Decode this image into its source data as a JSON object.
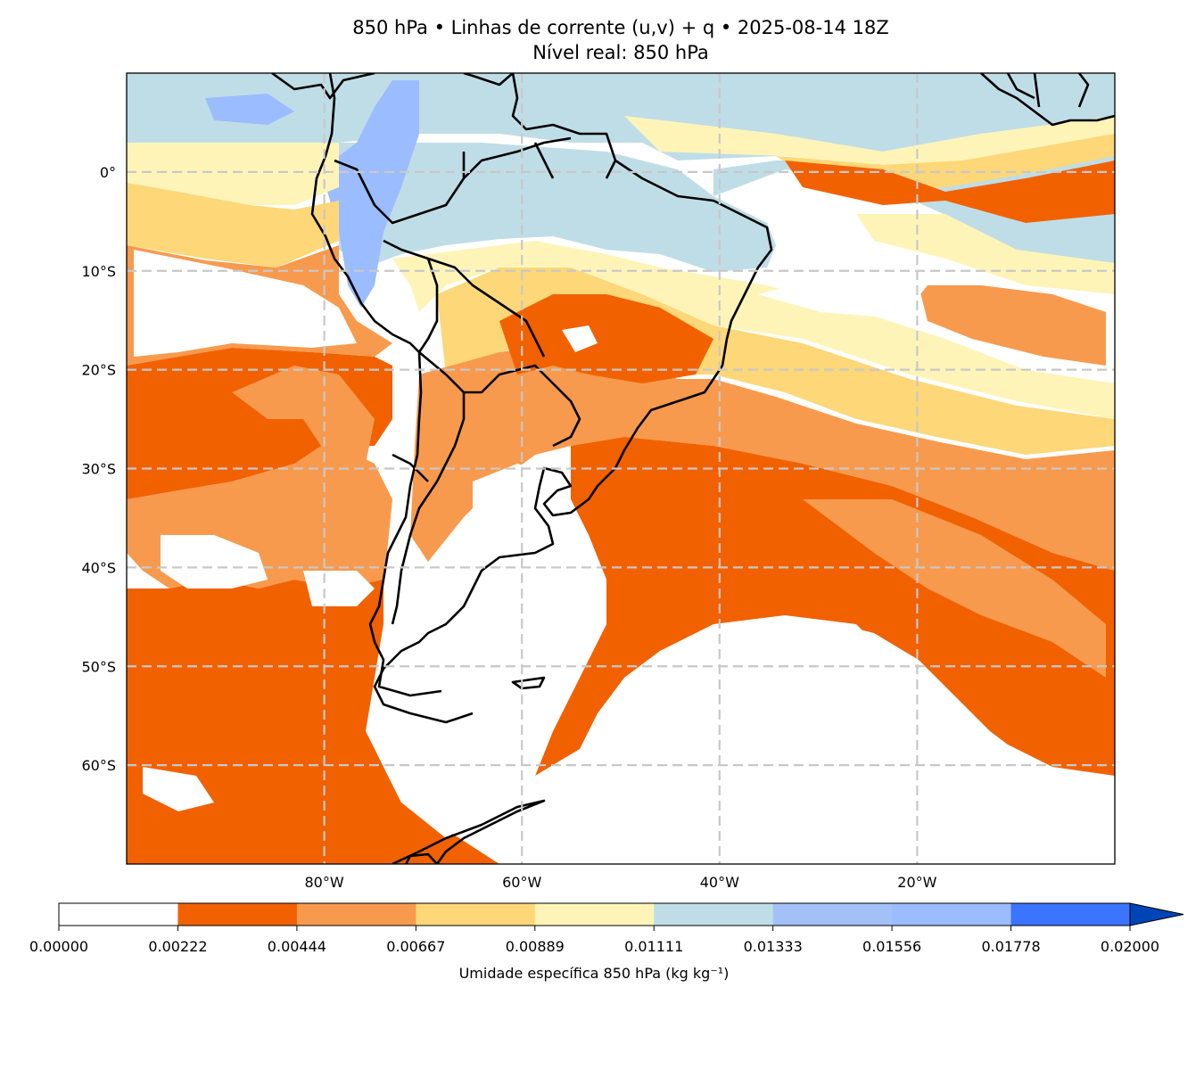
{
  "title": {
    "line1": "850 hPa • Linhas de corrente (u,v) + q • 2025-08-14 18Z",
    "line2": "Nível real: 850 hPa"
  },
  "map": {
    "lon_range": [
      -100,
      0
    ],
    "lat_range": [
      -70,
      10
    ],
    "lat_ticks": [
      {
        "value": 0,
        "label": "0°"
      },
      {
        "value": -10,
        "label": "10°S"
      },
      {
        "value": -20,
        "label": "20°S"
      },
      {
        "value": -30,
        "label": "30°S"
      },
      {
        "value": -40,
        "label": "40°S"
      },
      {
        "value": -50,
        "label": "50°S"
      },
      {
        "value": -60,
        "label": "60°S"
      }
    ],
    "lon_ticks": [
      {
        "value": -80,
        "label": "80°W"
      },
      {
        "value": -60,
        "label": "60°W"
      },
      {
        "value": -40,
        "label": "40°W"
      },
      {
        "value": -20,
        "label": "20°W"
      }
    ],
    "gridlines": "dashed"
  },
  "colorbar": {
    "label": "Umidade específica 850 hPa (kg kg⁻¹)",
    "extend": "max",
    "ticks": [
      "0.00000",
      "0.00222",
      "0.00444",
      "0.00667",
      "0.00889",
      "0.01111",
      "0.01333",
      "0.01556",
      "0.01778",
      "0.02000"
    ],
    "colors": [
      "#ffffff",
      "#f26100",
      "#f89a4d",
      "#fdd778",
      "#fff4b8",
      "#bfdde6",
      "#a3c0f7",
      "#9bbcff",
      "#3b74ff",
      "#0044b6"
    ],
    "extend_color": "#0044b6"
  },
  "colors": {
    "orange_dark": "#f26100",
    "orange_light": "#f89a4d",
    "yellow": "#fdd778",
    "cream": "#fff4b8",
    "light_blue": "#bfdde6",
    "blue": "#9bbcff",
    "blue_dark": "#3b74ff"
  }
}
